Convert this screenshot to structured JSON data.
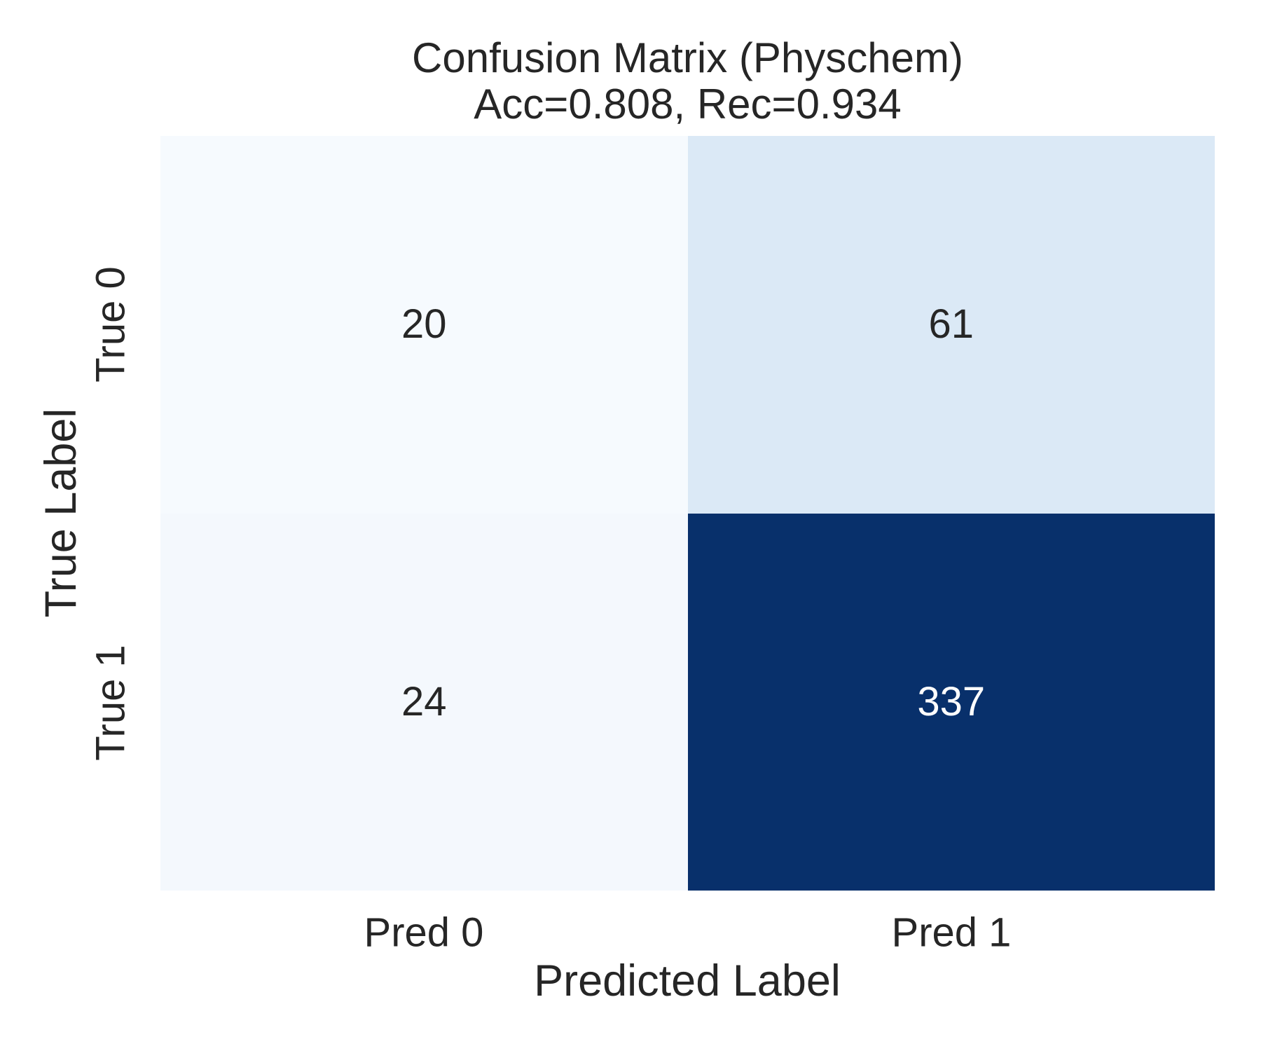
{
  "chart_data": {
    "type": "heatmap",
    "title": "Confusion Matrix (Physchem)",
    "subtitle": "Acc=0.808, Rec=0.934",
    "accuracy": 0.808,
    "recall": 0.934,
    "xlabel": "Predicted Label",
    "ylabel": "True Label",
    "x_ticklabels": [
      "Pred 0",
      "Pred 1"
    ],
    "y_ticklabels": [
      "True 0",
      "True 1"
    ],
    "matrix": [
      [
        20,
        61
      ],
      [
        24,
        337
      ]
    ],
    "colormap": "Blues",
    "vmin": 20,
    "vmax": 337,
    "grid": false,
    "legend": "none",
    "cell_colors": [
      [
        "#f6fafe",
        "#dbe9f6"
      ],
      [
        "#f4f8fd",
        "#08306b"
      ]
    ],
    "annot_colors": [
      [
        "#262626",
        "#262626"
      ],
      [
        "#262626",
        "#ffffff"
      ]
    ]
  }
}
